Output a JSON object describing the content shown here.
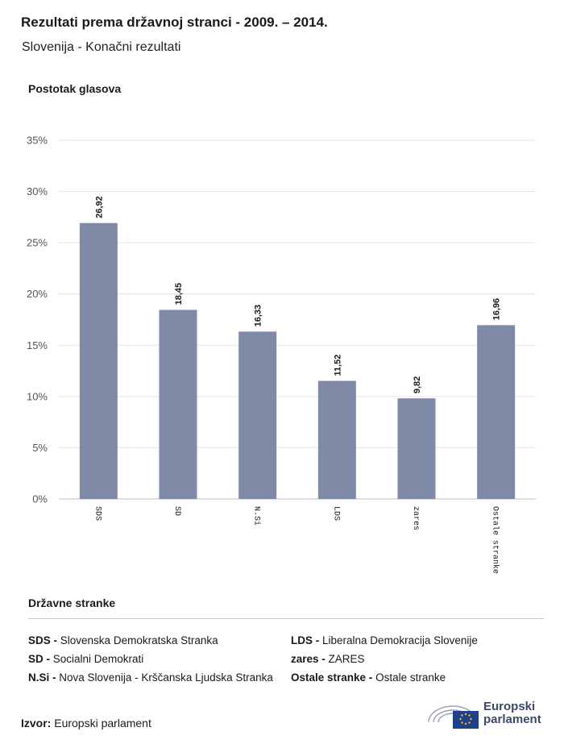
{
  "header": {
    "title": "Rezultati prema državnoj stranci - 2009. – 2014.",
    "subtitle": "Slovenija - Konačni rezultati"
  },
  "chart_data": {
    "type": "bar",
    "ylabel": "Postotak glasova",
    "categories": [
      "SDS",
      "SD",
      "N.Si",
      "LDS",
      "zares",
      "Ostale stranke"
    ],
    "values": [
      26.92,
      18.45,
      16.33,
      11.52,
      9.82,
      16.96
    ],
    "value_labels": [
      "26,92",
      "18,45",
      "16,33",
      "11,52",
      "9,82",
      "16,96"
    ],
    "yticks": [
      "0%",
      "5%",
      "10%",
      "15%",
      "20%",
      "25%",
      "30%",
      "35%"
    ],
    "ylim": [
      0,
      35
    ],
    "grid": true,
    "bar_color": "#7f8aa6"
  },
  "legend": {
    "title": "Državne stranke",
    "items": [
      {
        "abbr": "SDS -",
        "name": "Slovenska Demokratska Stranka"
      },
      {
        "abbr": "SD -",
        "name": "Socialni Demokrati"
      },
      {
        "abbr": "N.Si -",
        "name": "Nova Slovenija - Krščanska Ljudska Stranka"
      },
      {
        "abbr": "LDS -",
        "name": "Liberalna Demokracija Slovenije"
      },
      {
        "abbr": "zares -",
        "name": "ZARES"
      },
      {
        "abbr": "Ostale stranke -",
        "name": "Ostale stranke"
      }
    ]
  },
  "source": {
    "label": "Izvor:",
    "value": "Europski parlament"
  },
  "logo": {
    "line1": "Europski",
    "line2": "parlament"
  }
}
